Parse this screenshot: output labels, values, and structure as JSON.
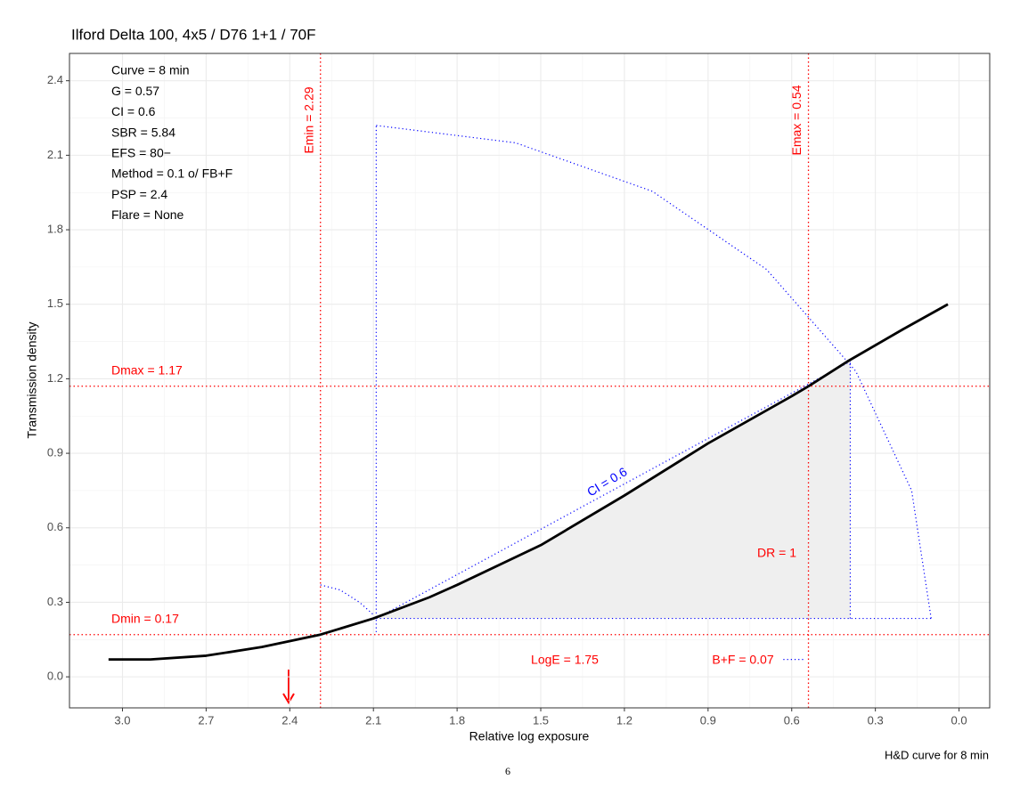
{
  "chart_data": {
    "type": "line",
    "title": "Ilford Delta 100, 4x5 / D76 1+1 / 70F",
    "x_label": "Relative log exposure",
    "y_label": "Transmission density",
    "caption": "H&D curve for 8 min",
    "page_number": "6",
    "info_lines": [
      "Curve =  8 min",
      "G =  0.57",
      "CI =  0.6",
      "SBR =  5.84",
      "EFS = 80−",
      "Method = 0.1 o/ FB+F",
      "PSP = 2.4",
      "Flare = None"
    ],
    "x": [
      3.05,
      2.9,
      2.7,
      2.5,
      2.29,
      2.1,
      1.9,
      1.8,
      1.5,
      1.2,
      0.9,
      0.6,
      0.54,
      0.4,
      0.2,
      0.04
    ],
    "series": [
      {
        "color": "#000000",
        "values": [
          0.07,
          0.07,
          0.085,
          0.12,
          0.17,
          0.235,
          0.32,
          0.37,
          0.53,
          0.73,
          0.94,
          1.13,
          1.17,
          1.27,
          1.4,
          1.5
        ]
      }
    ],
    "xlim": [
      3.19,
      -0.11
    ],
    "ylim": [
      -0.125,
      2.51
    ],
    "xticks": [
      {
        "value": 3,
        "label": "3.0"
      },
      2.7,
      2.4,
      2.1,
      1.8,
      1.5,
      1.2,
      0.9,
      0.6,
      0.3,
      {
        "value": 0,
        "label": "0.0"
      }
    ],
    "yticks": [
      {
        "value": 0,
        "label": "0.0"
      },
      0.3,
      0.6,
      0.9,
      1.2,
      1.5,
      1.8,
      2.1,
      2.4
    ],
    "grid": true,
    "reference_lines": [
      {
        "axis": "y",
        "value": 0.17,
        "label": "Dmin = 0.17",
        "color": "#ff0000"
      },
      {
        "axis": "y",
        "value": 1.17,
        "label": "Dmax = 1.17",
        "color": "#ff0000"
      },
      {
        "axis": "x",
        "value": 2.29,
        "label": "Emin = 2.29",
        "color": "#ff0000"
      },
      {
        "axis": "x",
        "value": 0.54,
        "label": "Emax = 0.54",
        "color": "#ff0000"
      }
    ],
    "shade": {
      "color": "#efefef",
      "x": [
        2.09,
        1.9,
        1.8,
        1.5,
        1.2,
        0.9,
        0.6,
        0.39,
        0.39
      ],
      "y": [
        0.235,
        0.32,
        0.37,
        0.53,
        0.73,
        0.94,
        1.13,
        1.27,
        0.235
      ]
    },
    "guides": [
      {
        "color": "#0000ff",
        "x": [
          2.09,
          0.39
        ],
        "y": [
          0.235,
          1.27
        ]
      },
      {
        "color": "#0000ff",
        "x": [
          2.09,
          2.09
        ],
        "y": [
          0.18,
          2.22
        ]
      },
      {
        "color": "#0000ff",
        "x": [
          2.09,
          0.1
        ],
        "y": [
          0.235,
          0.235
        ]
      },
      {
        "color": "#0000ff",
        "x": [
          0.39,
          0.39
        ],
        "y": [
          0.235,
          1.27
        ]
      },
      {
        "color": "#0000ff",
        "x": [
          2.09,
          1.59,
          1.1,
          0.69,
          0.37,
          0.17,
          0.1
        ],
        "y": [
          2.22,
          2.15,
          1.955,
          1.64,
          1.23,
          0.75,
          0.235
        ]
      },
      {
        "color": "#0000ff",
        "x": [
          2.29,
          2.22,
          2.15,
          2.1
        ],
        "y": [
          0.37,
          0.35,
          0.3,
          0.25
        ]
      },
      {
        "color": "#0000ff",
        "x": [
          0.63,
          0.55
        ],
        "y": [
          0.07,
          0.07
        ]
      }
    ],
    "annotations": [
      {
        "text": "CI = 0.6",
        "color": "#0000ff"
      },
      {
        "text": "DR = 1",
        "color": "#ff0000"
      },
      {
        "text": "LogE =  1.75",
        "color": "#ff0000"
      },
      {
        "text": "B+F =  0.07",
        "color": "#ff0000"
      }
    ]
  }
}
